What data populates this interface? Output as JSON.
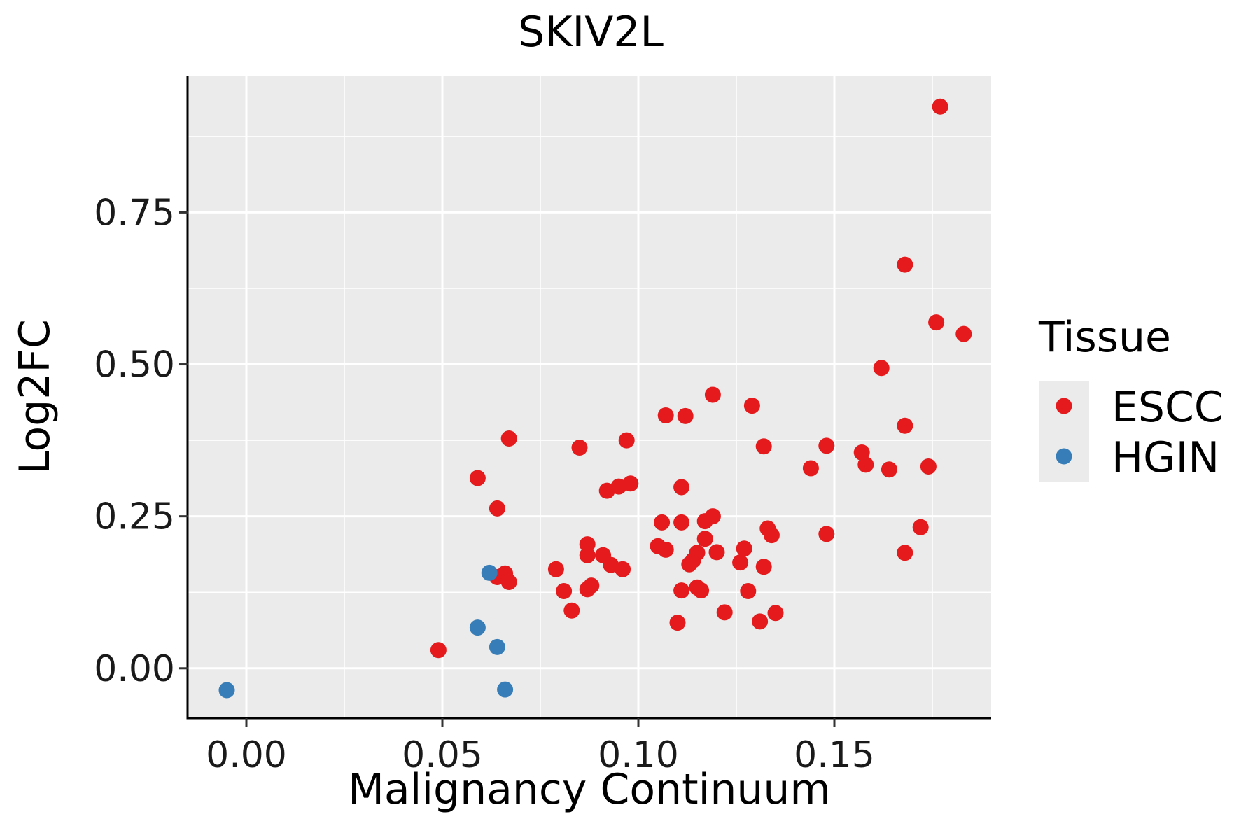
{
  "chart_data": {
    "type": "scatter",
    "title": "SKIV2L",
    "xlabel": "Malignancy Continuum",
    "ylabel": "Log2FC",
    "xlim": [
      -0.015,
      0.19
    ],
    "ylim": [
      -0.082,
      0.975
    ],
    "xticks": [
      0.0,
      0.05,
      0.1,
      0.15
    ],
    "xtick_labels": [
      "0.00",
      "0.05",
      "0.10",
      "0.15"
    ],
    "yticks": [
      0.0,
      0.25,
      0.5,
      0.75
    ],
    "ytick_labels": [
      "0.00",
      "0.25",
      "0.50",
      "0.75"
    ],
    "grid": true,
    "legend": {
      "title": "Tissue",
      "position": "right"
    },
    "series": [
      {
        "name": "ESCC",
        "color": "#E41A1C",
        "points": [
          [
            0.049,
            0.03
          ],
          [
            0.059,
            0.313
          ],
          [
            0.064,
            0.263
          ],
          [
            0.064,
            0.15
          ],
          [
            0.066,
            0.156
          ],
          [
            0.067,
            0.378
          ],
          [
            0.067,
            0.142
          ],
          [
            0.079,
            0.163
          ],
          [
            0.081,
            0.127
          ],
          [
            0.083,
            0.095
          ],
          [
            0.085,
            0.363
          ],
          [
            0.087,
            0.204
          ],
          [
            0.087,
            0.186
          ],
          [
            0.087,
            0.13
          ],
          [
            0.088,
            0.136
          ],
          [
            0.091,
            0.186
          ],
          [
            0.092,
            0.292
          ],
          [
            0.093,
            0.17
          ],
          [
            0.095,
            0.299
          ],
          [
            0.096,
            0.163
          ],
          [
            0.097,
            0.375
          ],
          [
            0.098,
            0.304
          ],
          [
            0.105,
            0.201
          ],
          [
            0.106,
            0.24
          ],
          [
            0.107,
            0.416
          ],
          [
            0.107,
            0.195
          ],
          [
            0.11,
            0.075
          ],
          [
            0.111,
            0.298
          ],
          [
            0.111,
            0.24
          ],
          [
            0.111,
            0.128
          ],
          [
            0.112,
            0.415
          ],
          [
            0.113,
            0.171
          ],
          [
            0.114,
            0.178
          ],
          [
            0.115,
            0.19
          ],
          [
            0.115,
            0.133
          ],
          [
            0.116,
            0.128
          ],
          [
            0.117,
            0.213
          ],
          [
            0.117,
            0.242
          ],
          [
            0.119,
            0.25
          ],
          [
            0.119,
            0.45
          ],
          [
            0.12,
            0.191
          ],
          [
            0.122,
            0.092
          ],
          [
            0.126,
            0.174
          ],
          [
            0.127,
            0.197
          ],
          [
            0.128,
            0.127
          ],
          [
            0.129,
            0.432
          ],
          [
            0.131,
            0.077
          ],
          [
            0.132,
            0.365
          ],
          [
            0.132,
            0.167
          ],
          [
            0.133,
            0.23
          ],
          [
            0.134,
            0.219
          ],
          [
            0.135,
            0.091
          ],
          [
            0.144,
            0.329
          ],
          [
            0.148,
            0.366
          ],
          [
            0.148,
            0.221
          ],
          [
            0.157,
            0.355
          ],
          [
            0.158,
            0.335
          ],
          [
            0.162,
            0.494
          ],
          [
            0.164,
            0.327
          ],
          [
            0.168,
            0.664
          ],
          [
            0.168,
            0.399
          ],
          [
            0.168,
            0.19
          ],
          [
            0.172,
            0.232
          ],
          [
            0.174,
            0.332
          ],
          [
            0.176,
            0.569
          ],
          [
            0.177,
            0.924
          ],
          [
            0.183,
            0.55
          ]
        ]
      },
      {
        "name": "HGIN",
        "color": "#377EB8",
        "points": [
          [
            -0.005,
            -0.036
          ],
          [
            0.059,
            0.067
          ],
          [
            0.062,
            0.157
          ],
          [
            0.064,
            0.035
          ],
          [
            0.066,
            -0.035
          ]
        ]
      }
    ]
  }
}
